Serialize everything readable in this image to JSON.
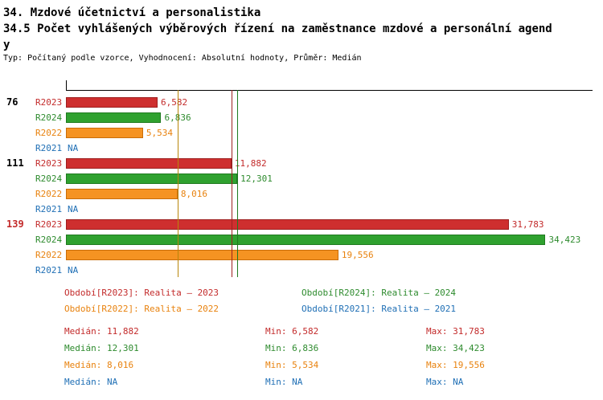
{
  "header": {
    "title_line1": "34. Mzdové účetnictví a personalistika",
    "title_line2": "34.5 Počet vyhlášených výběrových řízení na zaměstnance mzdové a personální agend",
    "title_line3": "y",
    "subtitle": "Typ: Počítaný podle vzorce, Vyhodnocení: Absolutní hodnoty, Průměr: Medián"
  },
  "colors": {
    "r2023": "#c32b2b",
    "r2024": "#2e8b2e",
    "r2022": "#e8820e",
    "r2021": "#1f6fb5",
    "median_r2023": "#9e2020",
    "median_r2024": "#1e7a1e",
    "median_r2022": "#b8860b"
  },
  "chart_data": {
    "type": "bar",
    "orientation": "horizontal",
    "title": "34.5 Počet vyhlášených výběrových řízení na zaměstnance mzdové a personální agendy",
    "xmax": 37800,
    "axis_tick_labels": [],
    "categories": [
      "76",
      "111",
      "139"
    ],
    "series": [
      {
        "name": "R2023",
        "values": [
          6582,
          11882,
          31783
        ]
      },
      {
        "name": "R2024",
        "values": [
          6836,
          12301,
          34423
        ]
      },
      {
        "name": "R2022",
        "values": [
          5534,
          8016,
          19556
        ]
      },
      {
        "name": "R2021",
        "values": [
          null,
          null,
          null
        ]
      }
    ],
    "medians": {
      "R2023": 11882,
      "R2024": 12301,
      "R2022": 8016
    },
    "groups": [
      {
        "label": "76",
        "emphasis": false,
        "bars": [
          {
            "series": "R2023",
            "value": 6582,
            "display": "6,582"
          },
          {
            "series": "R2024",
            "value": 6836,
            "display": "6,836"
          },
          {
            "series": "R2022",
            "value": 5534,
            "display": "5,534"
          },
          {
            "series": "R2021",
            "value": null,
            "display": "NA"
          }
        ]
      },
      {
        "label": "111",
        "emphasis": false,
        "bars": [
          {
            "series": "R2023",
            "value": 11882,
            "display": "11,882"
          },
          {
            "series": "R2024",
            "value": 12301,
            "display": "12,301"
          },
          {
            "series": "R2022",
            "value": 8016,
            "display": "8,016"
          },
          {
            "series": "R2021",
            "value": null,
            "display": "NA"
          }
        ]
      },
      {
        "label": "139",
        "emphasis": true,
        "bars": [
          {
            "series": "R2023",
            "value": 31783,
            "display": "31,783"
          },
          {
            "series": "R2024",
            "value": 34423,
            "display": "34,423"
          },
          {
            "series": "R2022",
            "value": 19556,
            "display": "19,556"
          },
          {
            "series": "R2021",
            "value": null,
            "display": "NA"
          }
        ]
      }
    ]
  },
  "legend": [
    {
      "series": "R2023",
      "label": "Období[R2023]: Realita – 2023"
    },
    {
      "series": "R2024",
      "label": "Období[R2024]: Realita – 2024"
    },
    {
      "series": "R2022",
      "label": "Období[R2022]: Realita – 2022"
    },
    {
      "series": "R2021",
      "label": "Období[R2021]: Realita – 2021"
    }
  ],
  "stats": [
    {
      "series": "R2023",
      "median": "Medián: 11,882",
      "min": "Min: 6,582",
      "max": "Max: 31,783"
    },
    {
      "series": "R2024",
      "median": "Medián: 12,301",
      "min": "Min: 6,836",
      "max": "Max: 34,423"
    },
    {
      "series": "R2022",
      "median": "Medián: 8,016",
      "min": "Min: 5,534",
      "max": "Max: 19,556"
    },
    {
      "series": "R2021",
      "median": "Medián: NA",
      "min": "Min: NA",
      "max": "Max: NA"
    }
  ]
}
